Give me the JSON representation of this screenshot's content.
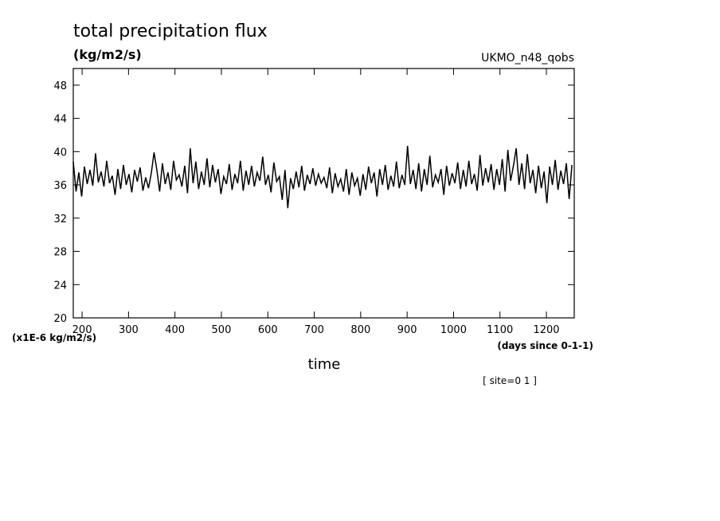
{
  "chart_data": {
    "type": "line",
    "title": "total precipitation flux",
    "subtitle": "(kg/m2/s)",
    "dataset": "UKMO_n48_qobs",
    "y_axis_label": "(x1E-6 kg/m2/s)",
    "x_axis_units": "(days since 0-1-1)",
    "x_axis_label": "time",
    "annotation": "[ site=0 1 ]",
    "xlim": [
      181,
      1260
    ],
    "xticks": [
      200,
      300,
      400,
      500,
      600,
      700,
      800,
      900,
      1000,
      1100,
      1200
    ],
    "ylim": [
      20,
      50
    ],
    "yticks": [
      20,
      24,
      28,
      32,
      36,
      40,
      44,
      48
    ],
    "x": [
      181,
      187,
      193,
      199,
      205,
      211,
      217,
      223,
      229,
      235,
      241,
      247,
      253,
      259,
      265,
      271,
      277,
      283,
      289,
      295,
      301,
      307,
      313,
      319,
      325,
      331,
      337,
      343,
      349,
      355,
      361,
      367,
      373,
      379,
      385,
      391,
      397,
      403,
      409,
      415,
      421,
      427,
      433,
      439,
      445,
      451,
      457,
      463,
      469,
      475,
      481,
      487,
      493,
      499,
      505,
      511,
      517,
      523,
      529,
      535,
      541,
      547,
      553,
      559,
      565,
      571,
      577,
      583,
      589,
      595,
      601,
      607,
      613,
      619,
      625,
      631,
      637,
      643,
      649,
      655,
      661,
      667,
      673,
      679,
      685,
      691,
      697,
      703,
      709,
      715,
      721,
      727,
      733,
      739,
      745,
      751,
      757,
      763,
      769,
      775,
      781,
      787,
      793,
      799,
      805,
      811,
      817,
      823,
      829,
      835,
      841,
      847,
      853,
      859,
      865,
      871,
      877,
      883,
      889,
      895,
      901,
      907,
      913,
      919,
      925,
      931,
      937,
      943,
      949,
      955,
      961,
      967,
      973,
      979,
      985,
      991,
      997,
      1003,
      1009,
      1015,
      1021,
      1027,
      1033,
      1039,
      1045,
      1051,
      1057,
      1063,
      1069,
      1075,
      1081,
      1087,
      1093,
      1099,
      1105,
      1111,
      1117,
      1123,
      1129,
      1135,
      1141,
      1147,
      1153,
      1159,
      1165,
      1171,
      1177,
      1183,
      1189,
      1195,
      1201,
      1207,
      1213,
      1219,
      1225,
      1231,
      1237,
      1243,
      1249,
      1255
    ],
    "series": [
      {
        "color": "#000000",
        "values": [
          38.8,
          35.2,
          37.5,
          34.6,
          38.2,
          36.1,
          37.8,
          35.9,
          39.8,
          36.3,
          37.6,
          35.8,
          38.9,
          36.2,
          37.1,
          34.8,
          37.9,
          35.5,
          38.4,
          36.0,
          37.3,
          35.1,
          37.8,
          36.4,
          38.1,
          35.3,
          36.9,
          35.6,
          37.4,
          39.9,
          37.8,
          35.2,
          38.6,
          36.1,
          37.5,
          35.4,
          38.9,
          36.6,
          37.2,
          35.8,
          38.3,
          35.0,
          40.4,
          36.2,
          38.8,
          35.5,
          37.6,
          36.0,
          39.2,
          35.7,
          38.4,
          36.3,
          37.9,
          34.9,
          37.0,
          36.1,
          38.5,
          35.4,
          37.3,
          36.2,
          38.9,
          35.3,
          37.7,
          36.0,
          38.3,
          35.8,
          37.5,
          36.5,
          39.4,
          36.0,
          37.2,
          35.1,
          38.7,
          36.4,
          37.0,
          34.2,
          37.8,
          33.2,
          36.8,
          35.5,
          37.6,
          35.7,
          38.3,
          35.3,
          37.2,
          36.1,
          38.0,
          35.9,
          37.3,
          36.2,
          36.9,
          35.6,
          38.1,
          35.0,
          37.4,
          35.8,
          36.7,
          35.2,
          37.9,
          34.8,
          37.5,
          35.9,
          36.8,
          34.7,
          37.3,
          35.4,
          38.2,
          36.2,
          37.5,
          34.6,
          37.9,
          36.0,
          38.4,
          35.4,
          37.1,
          35.8,
          38.8,
          35.6,
          37.2,
          36.0,
          40.7,
          36.1,
          37.8,
          35.5,
          38.6,
          35.2,
          37.9,
          36.0,
          39.5,
          35.7,
          37.2,
          36.3,
          37.9,
          34.8,
          38.3,
          35.9,
          37.4,
          36.2,
          38.7,
          35.5,
          37.8,
          35.8,
          38.9,
          36.1,
          37.3,
          35.3,
          39.6,
          35.9,
          38.0,
          36.3,
          38.5,
          35.4,
          37.9,
          36.0,
          39.1,
          35.2,
          40.2,
          36.5,
          38.3,
          40.4,
          36.0,
          38.6,
          35.5,
          39.7,
          36.2,
          37.8,
          35.0,
          38.3,
          35.6,
          37.6,
          33.8,
          38.2,
          36.0,
          39.0,
          35.4,
          37.7,
          36.1,
          38.6,
          34.3,
          38.4
        ]
      }
    ]
  }
}
